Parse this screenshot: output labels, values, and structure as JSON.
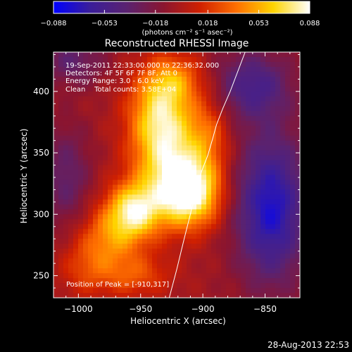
{
  "chart_data": {
    "type": "heatmap",
    "title": "Reconstructed RHESSI Image",
    "xlabel": "Heliocentric X (arcsec)",
    "ylabel": "Heliocentric Y (arcsec)",
    "xlim": [
      -1020,
      -822
    ],
    "ylim": [
      232,
      432
    ],
    "xticks": [
      -1000,
      -950,
      -900,
      -850
    ],
    "xtick_labels": [
      "−1000",
      "−950",
      "−900",
      "−850"
    ],
    "yticks": [
      250,
      300,
      350,
      400
    ],
    "ytick_labels": [
      "250",
      "300",
      "350",
      "400"
    ],
    "colorbar": {
      "min": -0.088,
      "max": 0.088,
      "ticks": [
        -0.088,
        -0.053,
        -0.018,
        0.018,
        0.053,
        0.088
      ],
      "tick_labels": [
        "−0.088",
        "−0.053",
        "−0.018",
        "0.018",
        "0.053",
        "0.088"
      ],
      "unit_label": "(photons cm⁻² s⁻¹ asec⁻²)",
      "stops": [
        "#0000ff",
        "#3a1e9a",
        "#5a2270",
        "#8a1530",
        "#d02000",
        "#ff7000",
        "#ffd400",
        "#ffffff"
      ]
    },
    "annotations": {
      "time_range": "19-Sep-2011 22:33:00.000 to 22:36:32.000",
      "detectors": "Detectors: 4F 5F 6F 7F 8F, Att 0",
      "energy": "Energy Range: 3.0 - 6.0 keV",
      "clean": "Clean    Total counts: 3.58E+04",
      "peak": "Position of Peak = [-910,317]"
    },
    "sources": [
      {
        "x": -910,
        "y": 317,
        "sx": 17,
        "sy": 19,
        "amp": 0.088
      },
      {
        "x": -955,
        "y": 303,
        "sx": 15,
        "sy": 16,
        "amp": 0.075
      },
      {
        "x": -928,
        "y": 345,
        "sx": 20,
        "sy": 30,
        "amp": 0.065
      },
      {
        "x": -935,
        "y": 385,
        "sx": 17,
        "sy": 24,
        "amp": 0.055
      },
      {
        "x": -975,
        "y": 280,
        "sx": 18,
        "sy": 18,
        "amp": 0.042
      },
      {
        "x": -995,
        "y": 255,
        "sx": 15,
        "sy": 16,
        "amp": 0.022
      },
      {
        "x": -955,
        "y": 250,
        "sx": 20,
        "sy": 12,
        "amp": 0.03
      },
      {
        "x": -922,
        "y": 410,
        "sx": 16,
        "sy": 14,
        "amp": 0.035
      },
      {
        "x": -895,
        "y": 365,
        "sx": 12,
        "sy": 22,
        "amp": 0.03
      }
    ],
    "negative_sources": [
      {
        "x": -845,
        "y": 305,
        "sx": 20,
        "sy": 42,
        "amp": -0.07
      },
      {
        "x": -860,
        "y": 405,
        "sx": 22,
        "sy": 20,
        "amp": -0.045
      },
      {
        "x": -1005,
        "y": 425,
        "sx": 18,
        "sy": 14,
        "amp": -0.03
      },
      {
        "x": -1010,
        "y": 330,
        "sx": 14,
        "sy": 30,
        "amp": -0.03
      }
    ],
    "limb_curve": {
      "x": [
        -927,
        -921,
        -915,
        -910,
        -905,
        -901,
        -896,
        -892,
        -889,
        -884,
        -878,
        -872,
        -866
      ],
      "y": [
        232,
        255,
        280,
        300,
        320,
        335,
        348,
        362,
        373,
        386,
        400,
        416,
        432
      ]
    }
  },
  "footer": {
    "timestamp": "28-Aug-2013 22:53"
  }
}
